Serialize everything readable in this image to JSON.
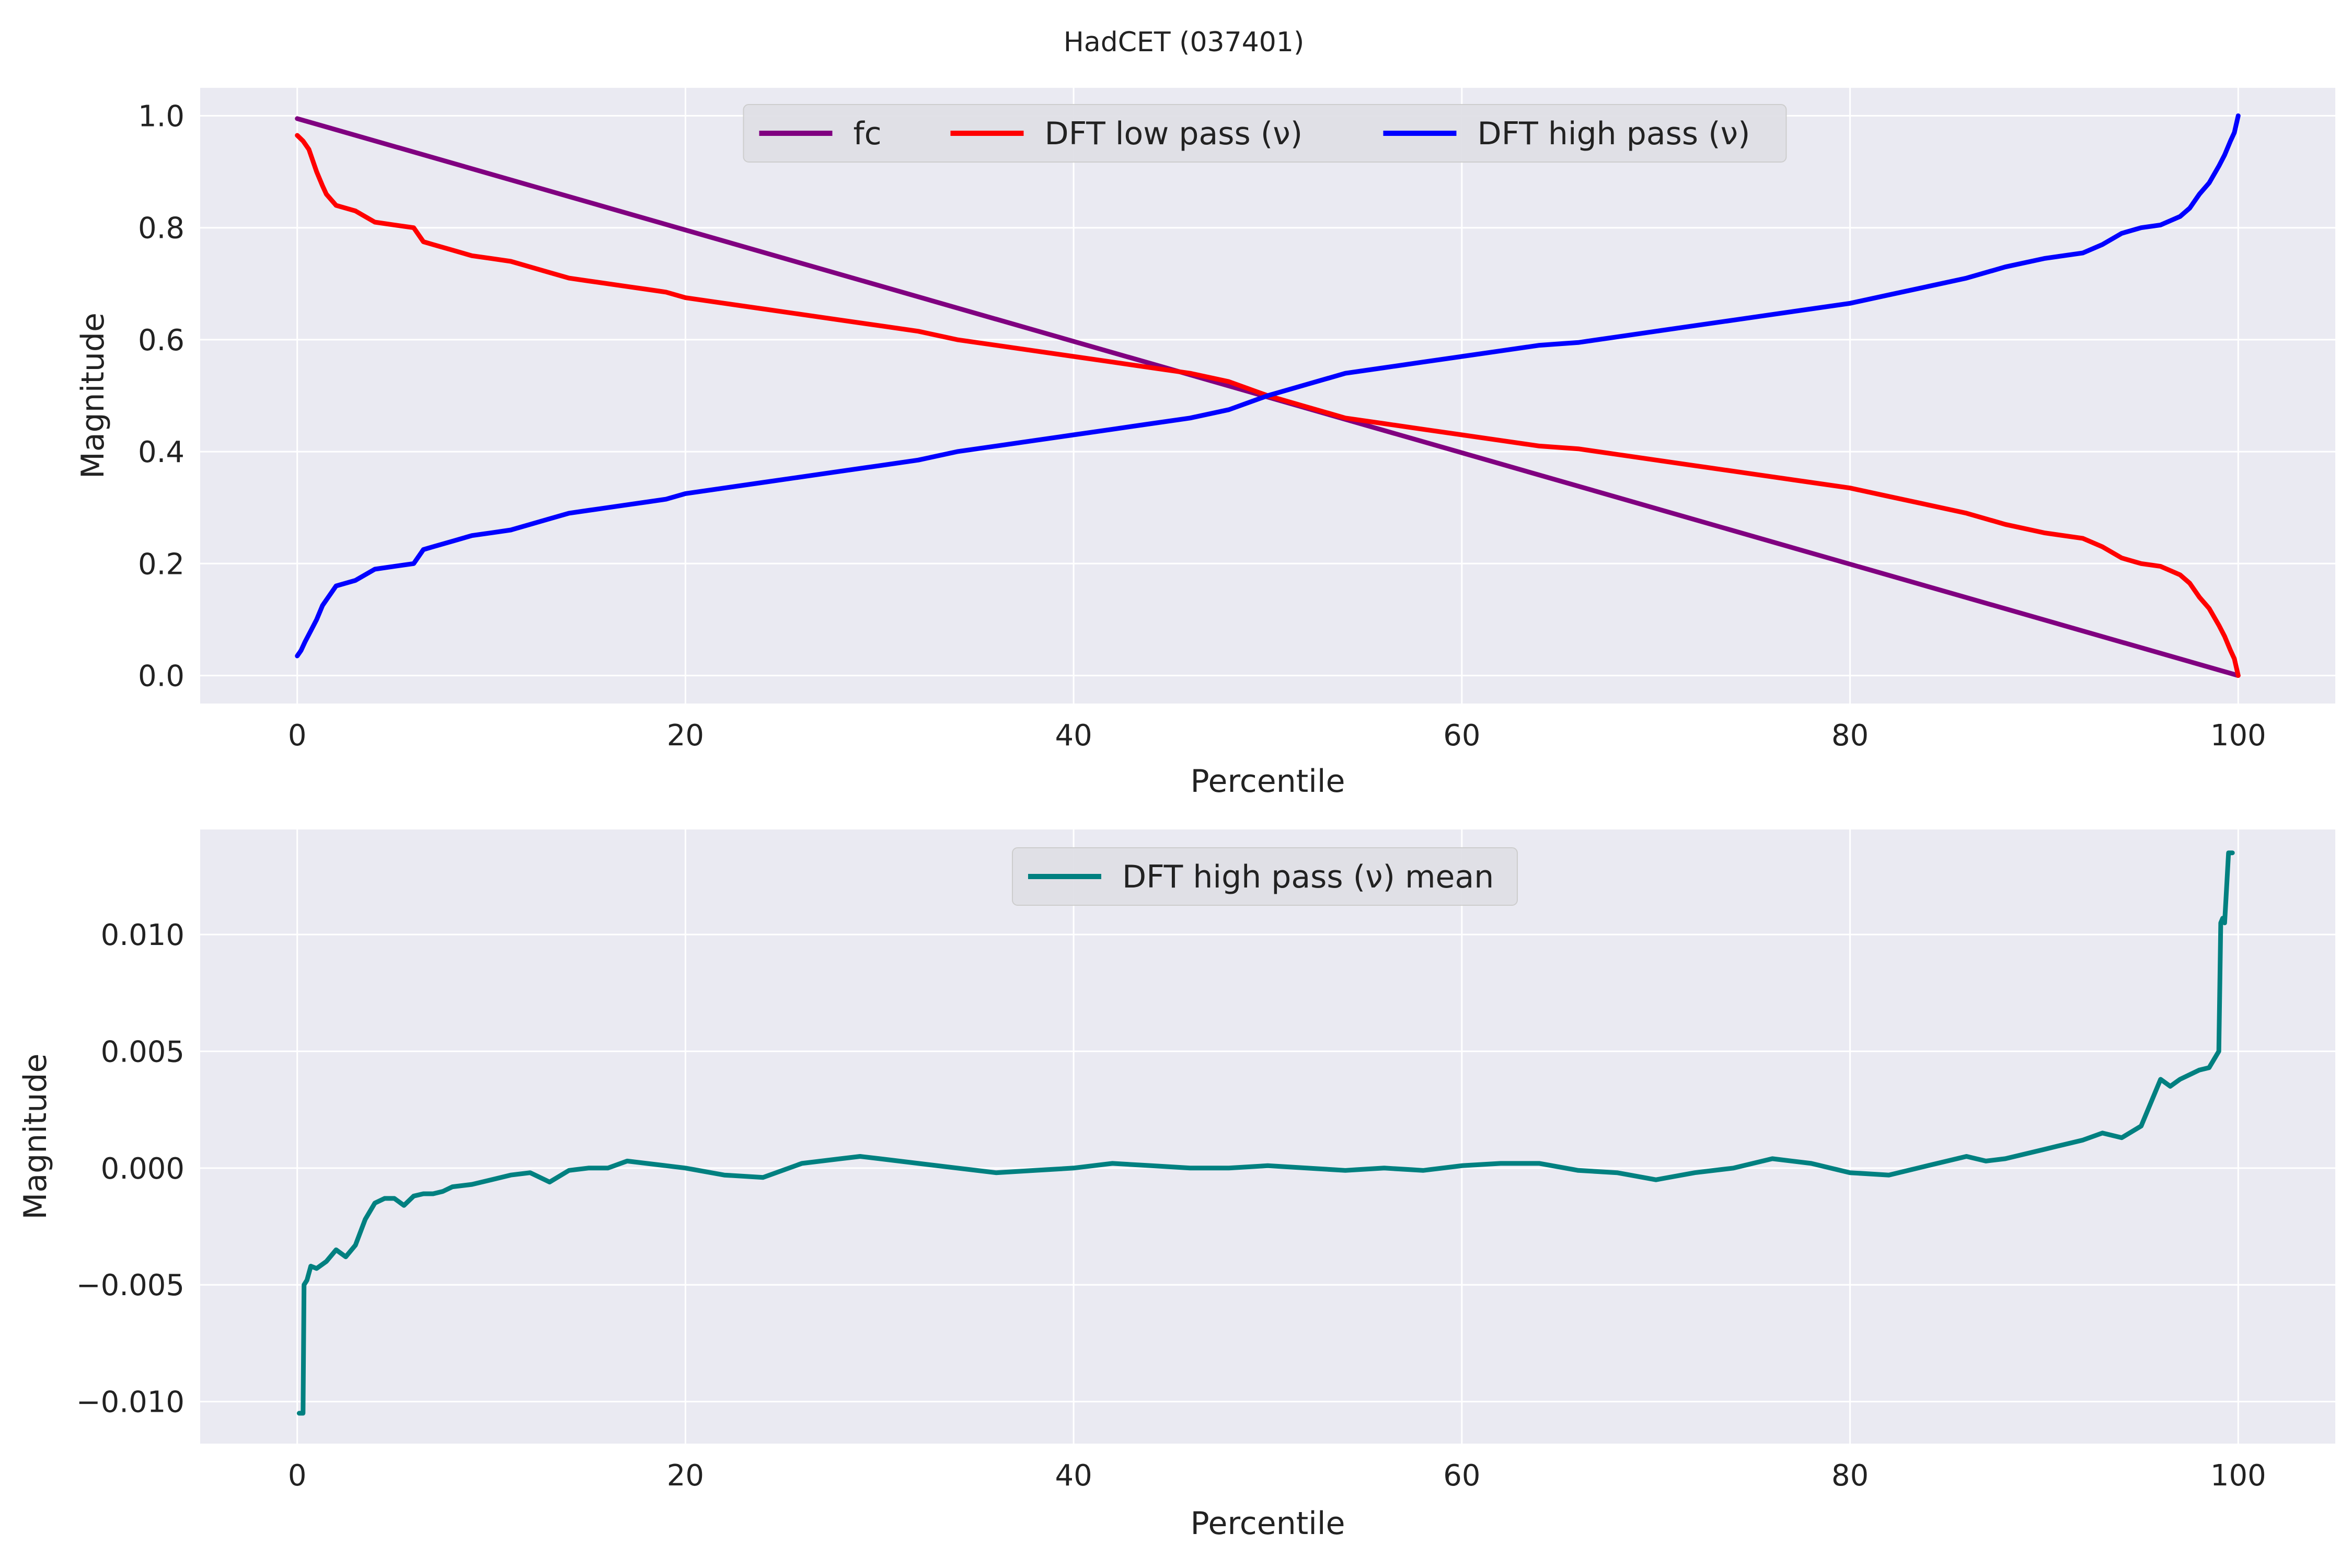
{
  "suptitle": "HadCET (037401)",
  "chart_data": [
    {
      "type": "line",
      "xlabel": "Percentile",
      "ylabel": "Magnitude",
      "xlim": [
        -5,
        105
      ],
      "ylim": [
        -0.05,
        1.05
      ],
      "xticks": [
        0,
        20,
        40,
        60,
        80,
        100
      ],
      "xtick_labels": [
        "0",
        "20",
        "40",
        "60",
        "80",
        "100"
      ],
      "yticks": [
        0.0,
        0.2,
        0.4,
        0.6,
        0.8,
        1.0
      ],
      "ytick_labels": [
        "0.0",
        "0.2",
        "0.4",
        "0.6",
        "0.8",
        "1.0"
      ],
      "grid": true,
      "legend": {
        "placement": "upper center",
        "columns": 3
      },
      "series": [
        {
          "name": "fc",
          "color": "#800080",
          "x": [
            0,
            100
          ],
          "y": [
            0.995,
            0.0
          ]
        },
        {
          "name": "DFT low pass (ν)",
          "color": "#ff0000",
          "x": [
            0,
            0.3,
            0.6,
            0.8,
            1.0,
            1.3,
            1.5,
            2,
            3,
            4,
            5,
            6,
            6.5,
            7,
            8,
            9,
            10,
            11,
            12,
            13,
            14,
            15,
            16,
            17,
            18,
            19,
            20,
            22,
            24,
            26,
            28,
            30,
            32,
            34,
            36,
            38,
            40,
            42,
            44,
            46,
            48,
            50,
            52,
            54,
            56,
            58,
            60,
            62,
            64,
            66,
            68,
            70,
            72,
            74,
            76,
            78,
            80,
            82,
            84,
            86,
            88,
            90,
            92,
            93,
            94,
            95,
            96,
            97,
            97.5,
            98,
            98.5,
            99,
            99.3,
            99.6,
            99.8,
            100
          ],
          "y": [
            0.965,
            0.955,
            0.94,
            0.92,
            0.9,
            0.875,
            0.86,
            0.84,
            0.83,
            0.81,
            0.805,
            0.8,
            0.775,
            0.77,
            0.76,
            0.75,
            0.745,
            0.74,
            0.73,
            0.72,
            0.71,
            0.705,
            0.7,
            0.695,
            0.69,
            0.685,
            0.675,
            0.665,
            0.655,
            0.645,
            0.635,
            0.625,
            0.615,
            0.6,
            0.59,
            0.58,
            0.57,
            0.56,
            0.55,
            0.54,
            0.525,
            0.5,
            0.48,
            0.46,
            0.45,
            0.44,
            0.43,
            0.42,
            0.41,
            0.405,
            0.395,
            0.385,
            0.375,
            0.365,
            0.355,
            0.345,
            0.335,
            0.32,
            0.305,
            0.29,
            0.27,
            0.255,
            0.245,
            0.23,
            0.21,
            0.2,
            0.195,
            0.18,
            0.165,
            0.14,
            0.12,
            0.09,
            0.07,
            0.045,
            0.03,
            0.0
          ]
        },
        {
          "name": "DFT high pass (ν)",
          "color": "#0000ff",
          "x": [
            0,
            0.2,
            0.4,
            0.7,
            1.0,
            1.3,
            1.6,
            2,
            3,
            4,
            5,
            6,
            6.5,
            7,
            8,
            9,
            10,
            11,
            12,
            13,
            14,
            15,
            16,
            17,
            18,
            19,
            20,
            22,
            24,
            26,
            28,
            30,
            32,
            34,
            36,
            38,
            40,
            42,
            44,
            46,
            48,
            50,
            52,
            54,
            56,
            58,
            60,
            62,
            64,
            66,
            68,
            70,
            72,
            74,
            76,
            78,
            80,
            82,
            84,
            86,
            88,
            90,
            92,
            93,
            94,
            95,
            96,
            97,
            97.5,
            98,
            98.5,
            99,
            99.3,
            99.6,
            99.8,
            100
          ],
          "y": [
            0.035,
            0.045,
            0.06,
            0.08,
            0.1,
            0.125,
            0.14,
            0.16,
            0.17,
            0.19,
            0.195,
            0.2,
            0.225,
            0.23,
            0.24,
            0.25,
            0.255,
            0.26,
            0.27,
            0.28,
            0.29,
            0.295,
            0.3,
            0.305,
            0.31,
            0.315,
            0.325,
            0.335,
            0.345,
            0.355,
            0.365,
            0.375,
            0.385,
            0.4,
            0.41,
            0.42,
            0.43,
            0.44,
            0.45,
            0.46,
            0.475,
            0.5,
            0.52,
            0.54,
            0.55,
            0.56,
            0.57,
            0.58,
            0.59,
            0.595,
            0.605,
            0.615,
            0.625,
            0.635,
            0.645,
            0.655,
            0.665,
            0.68,
            0.695,
            0.71,
            0.73,
            0.745,
            0.755,
            0.77,
            0.79,
            0.8,
            0.805,
            0.82,
            0.835,
            0.86,
            0.88,
            0.91,
            0.93,
            0.955,
            0.97,
            1.0
          ]
        }
      ]
    },
    {
      "type": "line",
      "xlabel": "Percentile",
      "ylabel": "Magnitude",
      "xlim": [
        -5,
        105
      ],
      "ylim": [
        -0.0118,
        0.0145
      ],
      "xticks": [
        0,
        20,
        40,
        60,
        80,
        100
      ],
      "xtick_labels": [
        "0",
        "20",
        "40",
        "60",
        "80",
        "100"
      ],
      "yticks": [
        -0.01,
        -0.005,
        0.0,
        0.005,
        0.01
      ],
      "ytick_labels": [
        "−0.010",
        "−0.005",
        "0.000",
        "0.005",
        "0.010"
      ],
      "grid": true,
      "legend": {
        "placement": "upper center",
        "columns": 1
      },
      "series": [
        {
          "name": "DFT high pass (ν) mean",
          "color": "#008080",
          "x": [
            0.1,
            0.3,
            0.35,
            0.5,
            0.7,
            1.0,
            1.5,
            2.0,
            2.5,
            3.0,
            3.5,
            4.0,
            4.5,
            5.0,
            5.5,
            6.0,
            6.5,
            7.0,
            7.5,
            8.0,
            9,
            10,
            11,
            12,
            13,
            14,
            15,
            16,
            17,
            18,
            19,
            20,
            22,
            24,
            26,
            28,
            29,
            30,
            32,
            34,
            36,
            38,
            40,
            42,
            44,
            46,
            48,
            50,
            52,
            54,
            56,
            58,
            60,
            62,
            64,
            66,
            68,
            70,
            72,
            74,
            76,
            78,
            80,
            82,
            84,
            86,
            87,
            88,
            90,
            91,
            92,
            93,
            94,
            95,
            96,
            96.5,
            97,
            98,
            98.5,
            99,
            99.1,
            99.2,
            99.3,
            99.5,
            99.7
          ],
          "y": [
            -0.0105,
            -0.0105,
            -0.005,
            -0.0048,
            -0.0042,
            -0.0043,
            -0.004,
            -0.0035,
            -0.0038,
            -0.0033,
            -0.0022,
            -0.0015,
            -0.0013,
            -0.0013,
            -0.0016,
            -0.0012,
            -0.0011,
            -0.0011,
            -0.001,
            -0.0008,
            -0.0007,
            -0.0005,
            -0.0003,
            -0.0002,
            -0.0006,
            -0.0001,
            0.0,
            0.0,
            0.0003,
            0.0002,
            0.0001,
            0.0,
            -0.0003,
            -0.0004,
            0.0002,
            0.0004,
            0.0005,
            0.0004,
            0.0002,
            0.0,
            -0.0002,
            -0.0001,
            0.0,
            0.0002,
            0.0001,
            0.0,
            0.0,
            0.0001,
            0.0,
            -0.0001,
            0.0,
            -0.0001,
            0.0001,
            0.0002,
            0.0002,
            -0.0001,
            -0.0002,
            -0.0005,
            -0.0002,
            0.0,
            0.0004,
            0.0002,
            -0.0002,
            -0.0003,
            0.0001,
            0.0005,
            0.0003,
            0.0004,
            0.0008,
            0.001,
            0.0012,
            0.0015,
            0.0013,
            0.0018,
            0.0038,
            0.0035,
            0.0038,
            0.0042,
            0.0043,
            0.005,
            0.0105,
            0.0107,
            0.0105,
            0.0135,
            0.0135
          ]
        }
      ]
    }
  ]
}
